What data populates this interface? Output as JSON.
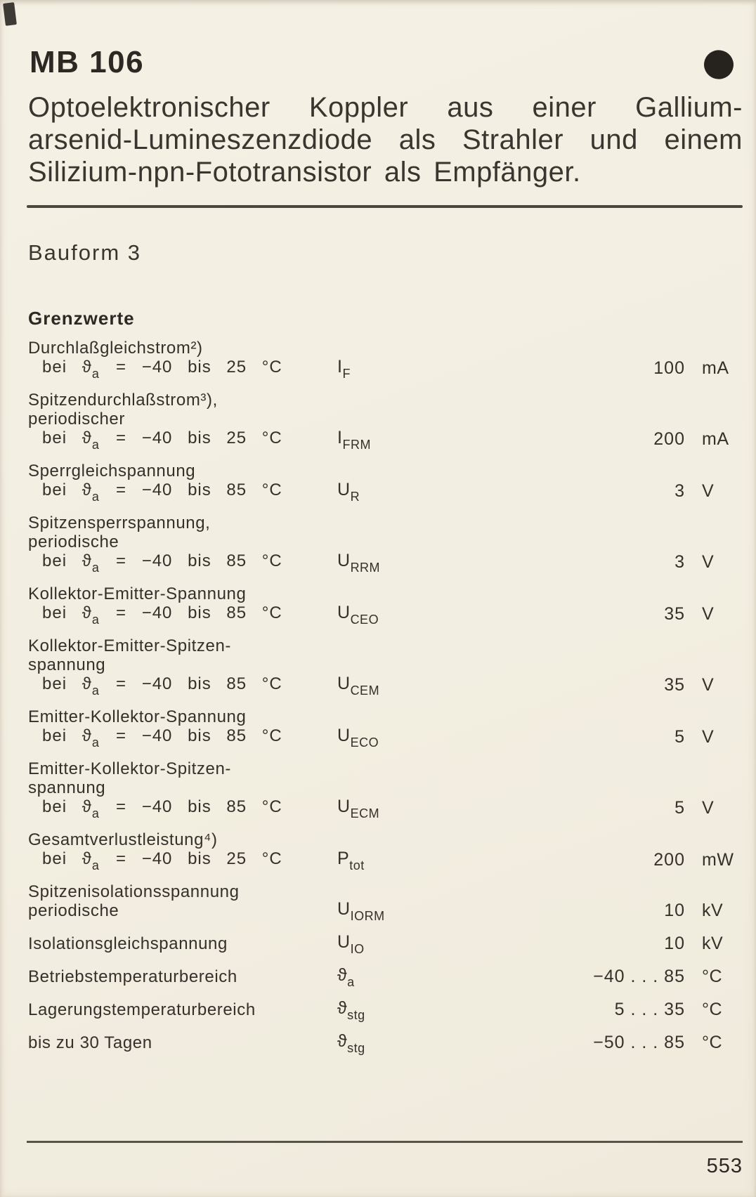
{
  "page": {
    "product_id": "MB 106",
    "title_lines": [
      "Optoelektronischer Koppler aus einer Gallium-",
      "arsenid-Lumineszenzdiode als Strahler und einem",
      "Silizium-npn-Fototransistor als Empfänger."
    ],
    "bauform": "Bauform 3",
    "section_heading": "Grenzwerte",
    "page_number": "553",
    "paper_color": "#f2eee1",
    "ink_color": "#34302a",
    "dot_color": "#26231f"
  },
  "table": {
    "rows": [
      {
        "label_lines": [
          "Durchlaßgleichstrom²)"
        ],
        "condition": {
          "pre": "bei ϑ",
          "sub": "a",
          "post": "= −40 bis 25 °C"
        },
        "symbol": {
          "base": "I",
          "sub": "F"
        },
        "value": "100",
        "unit": "mA"
      },
      {
        "label_lines": [
          "Spitzendurchlaßstrom³),",
          "periodischer"
        ],
        "condition": {
          "pre": "bei ϑ",
          "sub": "a",
          "post": "= −40 bis 25 °C"
        },
        "symbol": {
          "base": "I",
          "sub": "FRM"
        },
        "value": "200",
        "unit": "mA"
      },
      {
        "label_lines": [
          "Sperrgleichspannung"
        ],
        "condition": {
          "pre": "bei ϑ",
          "sub": "a",
          "post": "= −40 bis 85 °C"
        },
        "symbol": {
          "base": "U",
          "sub": "R"
        },
        "value": "3",
        "unit": "V"
      },
      {
        "label_lines": [
          "Spitzensperrspannung,",
          "periodische"
        ],
        "condition": {
          "pre": "bei ϑ",
          "sub": "a",
          "post": "= −40 bis 85 °C"
        },
        "symbol": {
          "base": "U",
          "sub": "RRM"
        },
        "value": "3",
        "unit": "V"
      },
      {
        "label_lines": [
          "Kollektor-Emitter-Spannung"
        ],
        "condition": {
          "pre": "bei ϑ",
          "sub": "a",
          "post": "= −40 bis 85 °C"
        },
        "symbol": {
          "base": "U",
          "sub": "CEO"
        },
        "value": "35",
        "unit": "V"
      },
      {
        "label_lines": [
          "Kollektor-Emitter-Spitzen-",
          "spannung"
        ],
        "condition": {
          "pre": "bei ϑ",
          "sub": "a",
          "post": "= −40 bis 85 °C"
        },
        "symbol": {
          "base": "U",
          "sub": "CEM"
        },
        "value": "35",
        "unit": "V"
      },
      {
        "label_lines": [
          "Emitter-Kollektor-Spannung"
        ],
        "condition": {
          "pre": "bei ϑ",
          "sub": "a",
          "post": "= −40 bis 85 °C"
        },
        "symbol": {
          "base": "U",
          "sub": "ECO"
        },
        "value": "5",
        "unit": "V"
      },
      {
        "label_lines": [
          "Emitter-Kollektor-Spitzen-",
          "spannung"
        ],
        "condition": {
          "pre": "bei ϑ",
          "sub": "a",
          "post": "= −40 bis 85 °C"
        },
        "symbol": {
          "base": "U",
          "sub": "ECM"
        },
        "value": "5",
        "unit": "V"
      },
      {
        "label_lines": [
          "Gesamtverlustleistung⁴)"
        ],
        "condition": {
          "pre": "bei ϑ",
          "sub": "a",
          "post": "= −40 bis 25 °C"
        },
        "symbol": {
          "base": "P",
          "sub": "tot"
        },
        "value": "200",
        "unit": "mW"
      },
      {
        "label_lines": [
          "Spitzenisolationsspannung",
          "periodische"
        ],
        "condition": null,
        "symbol": {
          "base": "U",
          "sub": "IORM"
        },
        "value": "10",
        "unit": "kV"
      },
      {
        "label_lines": [
          "Isolationsgleichspannung"
        ],
        "condition": null,
        "symbol": {
          "base": "U",
          "sub": "IO"
        },
        "value": "10",
        "unit": "kV"
      },
      {
        "label_lines": [
          "Betriebstemperaturbereich"
        ],
        "condition": null,
        "symbol": {
          "base": "ϑ",
          "sub": "a"
        },
        "value": "−40 . . . 85",
        "unit": "°C"
      },
      {
        "label_lines": [
          "Lagerungstemperaturbereich"
        ],
        "condition": null,
        "symbol": {
          "base": "ϑ",
          "sub": "stg"
        },
        "value": "5 . . . 35",
        "unit": "°C"
      },
      {
        "label_lines": [
          "bis zu 30 Tagen"
        ],
        "condition": null,
        "symbol": {
          "base": "ϑ",
          "sub": "stg"
        },
        "value": "−50 . . . 85",
        "unit": "°C"
      }
    ]
  }
}
